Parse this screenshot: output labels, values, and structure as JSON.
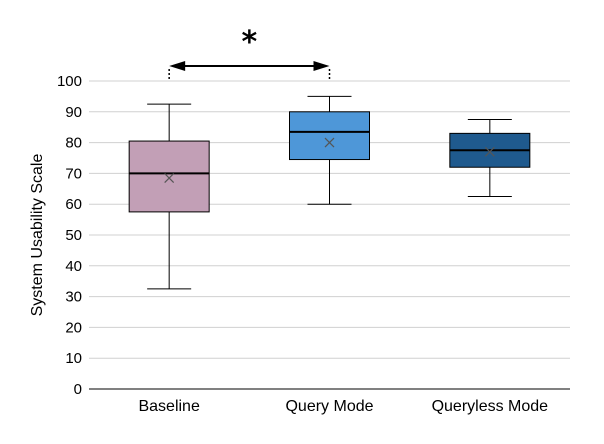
{
  "chart_data": {
    "type": "boxplot",
    "ylabel": "System Usability Scale",
    "ylim": [
      0,
      100
    ],
    "yticks": [
      0,
      10,
      20,
      30,
      40,
      50,
      60,
      70,
      80,
      90,
      100
    ],
    "grid": true,
    "categories": [
      "Baseline",
      "Query Mode",
      "Queryless Mode"
    ],
    "boxes": [
      {
        "category": "Baseline",
        "min": 32.5,
        "q1": 57.5,
        "median": 70,
        "q3": 80.5,
        "max": 92.5,
        "mean": 68.5,
        "color": "#c29fb6"
      },
      {
        "category": "Query Mode",
        "min": 60,
        "q1": 74.5,
        "median": 83.5,
        "q3": 90,
        "max": 95,
        "mean": 80,
        "color": "#4e97d8"
      },
      {
        "category": "Queryless Mode",
        "min": 62.5,
        "q1": 72,
        "median": 77.5,
        "q3": 83,
        "max": 87.5,
        "mean": 77,
        "color": "#1f5a8e"
      }
    ],
    "significance": {
      "from": "Baseline",
      "to": "Query Mode",
      "label": "*"
    }
  }
}
